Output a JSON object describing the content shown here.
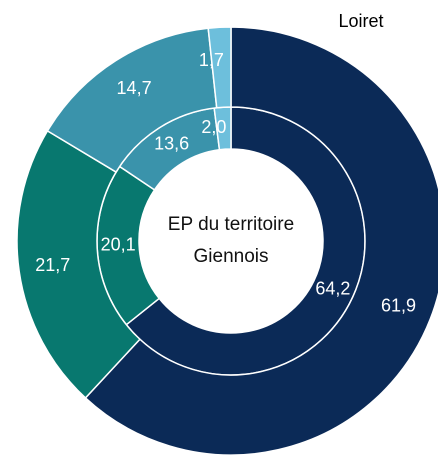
{
  "chart_data": {
    "type": "donut",
    "colors": [
      "#0b2a57",
      "#08786f",
      "#3a93ab",
      "#6dbfdc"
    ],
    "series": [
      {
        "name": "EP du territoire Giennois",
        "values": [
          64.2,
          20.1,
          13.6,
          2.0
        ],
        "value_labels": [
          "64,2",
          "20,1",
          "13,6",
          "2,0"
        ]
      },
      {
        "name": "Loiret",
        "values": [
          61.9,
          21.7,
          14.7,
          1.7
        ],
        "value_labels": [
          "61,9",
          "21,7",
          "14,7",
          "1,7"
        ]
      }
    ]
  }
}
